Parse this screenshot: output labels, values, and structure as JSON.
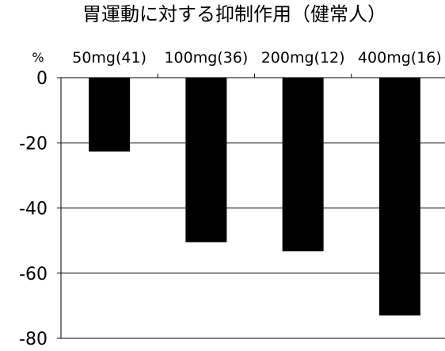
{
  "chart_data": {
    "type": "bar",
    "title": "胃運動に対する抑制作用（健常人）",
    "unit_label": "%",
    "xlabel": "",
    "ylabel": "",
    "categories": [
      "50mg(41)",
      "100mg(36)",
      "200mg(12)",
      "400mg(16)"
    ],
    "values": [
      -22.7,
      -50.5,
      -53.3,
      -73.0
    ],
    "ylim": [
      -80,
      0
    ],
    "yticks": [
      0,
      -20,
      -40,
      -60,
      -80
    ],
    "grid": true,
    "category_labels_position": "top",
    "bar_color": "#000000",
    "grid_color": "#000000"
  }
}
